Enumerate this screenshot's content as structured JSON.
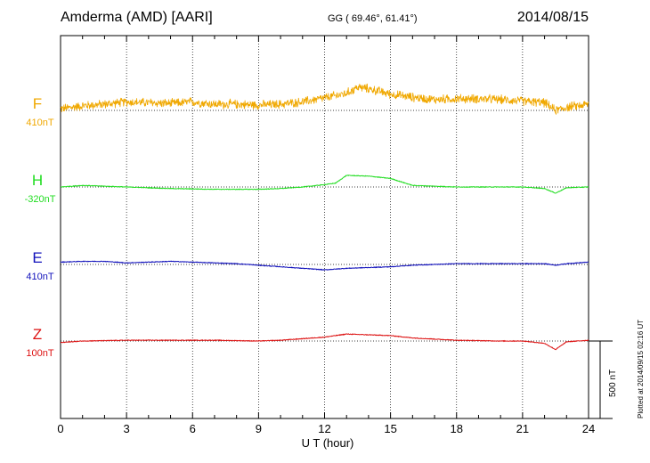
{
  "header": {
    "station": "Amderma (AMD)  [AARI]",
    "coords": "GG ( 69.46°,  61.41°)",
    "date": "2014/08/15"
  },
  "footer_note": "Plotted at 2014/09/15 02:16 UT",
  "scale_bar": {
    "label": "500 nT",
    "value_nT": 500
  },
  "chart_data": {
    "type": "line",
    "xlabel": "U T (hour)",
    "xlim": [
      0,
      24
    ],
    "xticks": [
      0,
      3,
      6,
      9,
      12,
      15,
      18,
      21,
      24
    ],
    "xtick_labels": [
      "0",
      "3",
      "6",
      "9",
      "12",
      "15",
      "18",
      "21",
      "24"
    ],
    "grid": true,
    "units": "nT",
    "series": [
      {
        "letter": "F",
        "offset_label": "410nT",
        "color": "#f0a800",
        "noise_nT": 45,
        "x": [
          0,
          1,
          2,
          3,
          4,
          5,
          6,
          7,
          8,
          9,
          10,
          11,
          12,
          13,
          13.5,
          14,
          15,
          16,
          17,
          18,
          19,
          20,
          21,
          22,
          22.5,
          23,
          24
        ],
        "values": [
          10,
          30,
          40,
          55,
          50,
          45,
          55,
          40,
          40,
          35,
          40,
          55,
          80,
          110,
          150,
          140,
          105,
          85,
          70,
          75,
          75,
          70,
          60,
          50,
          0,
          20,
          40
        ]
      },
      {
        "letter": "H",
        "offset_label": "-320nT",
        "color": "#22dd22",
        "noise_nT": 4,
        "x": [
          0,
          1,
          2,
          3,
          5,
          7,
          9,
          10,
          11,
          12,
          12.5,
          13,
          14,
          15,
          16,
          18,
          20,
          21,
          22,
          22.5,
          23,
          24
        ],
        "values": [
          0,
          10,
          5,
          0,
          -10,
          -15,
          -15,
          -10,
          0,
          15,
          25,
          75,
          70,
          55,
          10,
          0,
          0,
          0,
          -10,
          -40,
          -5,
          0
        ]
      },
      {
        "letter": "E",
        "offset_label": "410nT",
        "color": "#1111bb",
        "noise_nT": 4,
        "x": [
          0,
          1,
          2,
          3,
          4,
          5,
          6,
          7,
          8,
          9,
          10,
          11,
          12,
          13,
          14,
          15,
          16,
          18,
          20,
          22,
          22.5,
          23,
          24
        ],
        "values": [
          15,
          20,
          20,
          10,
          15,
          20,
          15,
          10,
          5,
          -5,
          -15,
          -25,
          -35,
          -25,
          -20,
          -15,
          -5,
          5,
          5,
          5,
          -5,
          5,
          15
        ]
      },
      {
        "letter": "Z",
        "offset_label": "100nT",
        "color": "#dd1111",
        "noise_nT": 4,
        "x": [
          0,
          1,
          3,
          5,
          7,
          9,
          10,
          11,
          12,
          13,
          14,
          15,
          16,
          18,
          20,
          21,
          22,
          22.5,
          23,
          24
        ],
        "values": [
          -10,
          0,
          5,
          5,
          5,
          0,
          5,
          15,
          25,
          45,
          40,
          35,
          20,
          5,
          0,
          0,
          -15,
          -55,
          -5,
          5
        ]
      }
    ]
  }
}
